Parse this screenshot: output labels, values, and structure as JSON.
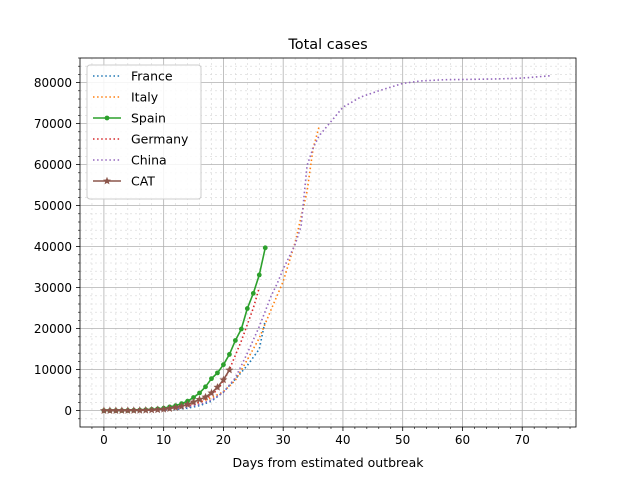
{
  "chart_data": {
    "type": "line",
    "title": "Total cases",
    "xlabel": "Days from estimated outbreak",
    "ylabel": "",
    "xlim": [
      -4,
      79
    ],
    "ylim": [
      -4000,
      86000
    ],
    "x_ticks": [
      0,
      10,
      20,
      30,
      40,
      50,
      60,
      70
    ],
    "x_tick_labels": [
      "0",
      "10",
      "20",
      "30",
      "40",
      "50",
      "60",
      "70"
    ],
    "y_ticks": [
      0,
      10000,
      20000,
      30000,
      40000,
      50000,
      60000,
      70000,
      80000
    ],
    "y_tick_labels": [
      "0",
      "10000",
      "20000",
      "30000",
      "40000",
      "50000",
      "60000",
      "70000",
      "80000"
    ],
    "grid": "major and minor",
    "legend_position": "upper-left",
    "series": [
      {
        "name": "France",
        "color": "#1f77b4",
        "style": "dotted",
        "marker": "none",
        "x": [
          0,
          2,
          4,
          6,
          8,
          10,
          12,
          14,
          16,
          18,
          20,
          22,
          24,
          26,
          27
        ],
        "y": [
          0,
          10,
          20,
          40,
          80,
          150,
          300,
          600,
          1200,
          2300,
          4500,
          7700,
          11000,
          15000,
          22000
        ]
      },
      {
        "name": "Italy",
        "color": "#ff7f0e",
        "style": "dotted",
        "marker": "none",
        "x": [
          0,
          4,
          8,
          10,
          12,
          14,
          16,
          18,
          20,
          22,
          24,
          26,
          28,
          30,
          32,
          34,
          35,
          36
        ],
        "y": [
          0,
          50,
          150,
          300,
          650,
          1100,
          2000,
          3100,
          4600,
          7400,
          12400,
          17700,
          24700,
          31500,
          41000,
          53500,
          63900,
          69200
        ]
      },
      {
        "name": "Spain",
        "color": "#2ca02c",
        "style": "solid",
        "marker": "circle",
        "x": [
          0,
          1,
          2,
          3,
          4,
          5,
          6,
          7,
          8,
          9,
          10,
          11,
          12,
          13,
          14,
          15,
          16,
          17,
          18,
          19,
          20,
          21,
          22,
          23,
          24,
          25,
          26,
          27
        ],
        "y": [
          0,
          5,
          10,
          20,
          40,
          70,
          120,
          200,
          300,
          420,
          600,
          900,
          1200,
          1700,
          2300,
          3200,
          4300,
          5800,
          7800,
          9200,
          11200,
          13700,
          17100,
          19900,
          24900,
          28600,
          33100,
          39700
        ]
      },
      {
        "name": "Germany",
        "color": "#d62728",
        "style": "dotted",
        "marker": "none",
        "x": [
          0,
          4,
          8,
          10,
          12,
          14,
          16,
          18,
          19,
          20,
          21,
          22,
          23,
          24,
          25,
          26
        ],
        "y": [
          0,
          30,
          100,
          200,
          500,
          1000,
          2000,
          3700,
          5200,
          7200,
          10000,
          13500,
          17000,
          21000,
          25000,
          30000
        ]
      },
      {
        "name": "China",
        "color": "#9467bd",
        "style": "dotted",
        "marker": "none",
        "x": [
          0,
          6,
          10,
          14,
          16,
          18,
          20,
          22,
          24,
          26,
          28,
          29,
          30,
          31,
          32,
          33,
          34,
          35,
          36,
          38,
          40,
          43,
          46,
          50,
          53,
          57,
          62,
          66,
          70,
          75
        ],
        "y": [
          0,
          100,
          300,
          900,
          1500,
          2600,
          4500,
          8000,
          14000,
          20500,
          28000,
          31000,
          34500,
          37500,
          40500,
          45000,
          59800,
          64000,
          67000,
          70500,
          74000,
          76500,
          78000,
          79800,
          80400,
          80700,
          80800,
          80900,
          81100,
          81700
        ]
      },
      {
        "name": "CAT",
        "color": "#8c564b",
        "style": "solid",
        "marker": "star",
        "x": [
          0,
          1,
          2,
          3,
          4,
          5,
          6,
          7,
          8,
          9,
          10,
          11,
          12,
          13,
          14,
          15,
          16,
          17,
          18,
          19,
          20,
          21
        ],
        "y": [
          0,
          5,
          10,
          15,
          25,
          40,
          60,
          90,
          140,
          220,
          330,
          500,
          750,
          1050,
          1500,
          2100,
          2700,
          3300,
          4300,
          5700,
          7500,
          9900
        ]
      }
    ]
  }
}
